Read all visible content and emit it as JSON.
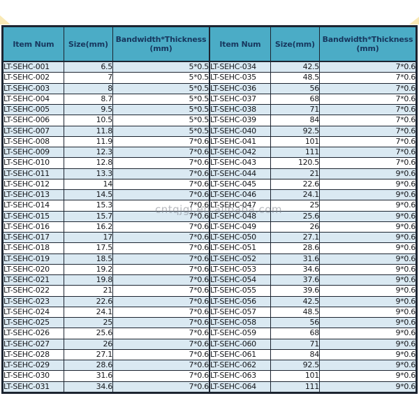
{
  "columns": [
    "Item Num",
    "Size(mm)",
    "Bandwidth*Thickness\n(mm)"
  ],
  "tables": {
    "left": {
      "rows": [
        [
          "LT-SEHC-001",
          "6.5",
          "5*0.5"
        ],
        [
          "LT-SEHC-002",
          "7",
          "5*0.5"
        ],
        [
          "LT-SEHC-003",
          "8",
          "5*0.5"
        ],
        [
          "LT-SEHC-004",
          "8.7",
          "5*0.5"
        ],
        [
          "LT-SEHC-005",
          "9.5",
          "5*0.5"
        ],
        [
          "LT-SEHC-006",
          "10.5",
          "5*0.5"
        ],
        [
          "LT-SEHC-007",
          "11.8",
          "5*0.5"
        ],
        [
          "LT-SEHC-008",
          "11.9",
          "7*0.6"
        ],
        [
          "LT-SEHC-009",
          "12.3",
          "7*0.6"
        ],
        [
          "LT-SEHC-010",
          "12.8",
          "7*0.6"
        ],
        [
          "LT-SEHC-011",
          "13.3",
          "7*0.6"
        ],
        [
          "LT-SEHC-012",
          "14",
          "7*0.6"
        ],
        [
          "LT-SEHC-013",
          "14.5",
          "7*0.6"
        ],
        [
          "LT-SEHC-014",
          "15.3",
          "7*0.6"
        ],
        [
          "LT-SEHC-015",
          "15.7",
          "7*0.6"
        ],
        [
          "LT-SEHC-016",
          "16.2",
          "7*0.6"
        ],
        [
          "LT-SEHC-017",
          "17",
          "7*0.6"
        ],
        [
          "LT-SEHC-018",
          "17.5",
          "7*0.6"
        ],
        [
          "LT-SEHC-019",
          "18.5",
          "7*0.6"
        ],
        [
          "LT-SEHC-020",
          "19.2",
          "7*0.6"
        ],
        [
          "LT-SEHC-021",
          "19.8",
          "7*0.6"
        ],
        [
          "LT-SEHC-022",
          "21",
          "7*0.6"
        ],
        [
          "LT-SEHC-023",
          "22.6",
          "7*0.6"
        ],
        [
          "LT-SEHC-024",
          "24.1",
          "7*0.6"
        ],
        [
          "LT-SEHC-025",
          "25",
          "7*0.6"
        ],
        [
          "LT-SEHC-026",
          "25.6",
          "7*0.6"
        ],
        [
          "LT-SEHC-027",
          "26",
          "7*0.6"
        ],
        [
          "LT-SEHC-028",
          "27.1",
          "7*0.6"
        ],
        [
          "LT-SEHC-029",
          "28.6",
          "7*0.6"
        ],
        [
          "LT-SEHC-030",
          "31.6",
          "7*0.6"
        ],
        [
          "LT-SEHC-031",
          "34.6",
          "7*0.6"
        ]
      ]
    },
    "right": {
      "rows": [
        [
          "LT-SEHC-034",
          "42.5",
          "7*0.6"
        ],
        [
          "LT-SEHC-035",
          "48.5",
          "7*0.6"
        ],
        [
          "LT-SEHC-036",
          "56",
          "7*0.6"
        ],
        [
          "LT-SEHC-037",
          "68",
          "7*0.6"
        ],
        [
          "LT-SEHC-038",
          "71",
          "7*0.6"
        ],
        [
          "LT-SEHC-039",
          "84",
          "7*0.6"
        ],
        [
          "LT-SEHC-040",
          "92.5",
          "7*0.6"
        ],
        [
          "LT-SEHC-041",
          "101",
          "7*0.6"
        ],
        [
          "LT-SEHC-042",
          "111",
          "7*0.6"
        ],
        [
          "LT-SEHC-043",
          "120.5",
          "7*0.6"
        ],
        [
          "LT-SEHC-044",
          "21",
          "9*0.6"
        ],
        [
          "LT-SEHC-045",
          "22.6",
          "9*0.6"
        ],
        [
          "LT-SEHC-046",
          "24.1",
          "9*0.6"
        ],
        [
          "LT-SEHC-047",
          "25",
          "9*0.6"
        ],
        [
          "LT-SEHC-048",
          "25.6",
          "9*0.6"
        ],
        [
          "LT-SEHC-049",
          "26",
          "9*0.6"
        ],
        [
          "LT-SEHC-050",
          "27.1",
          "9*0.6"
        ],
        [
          "LT-SEHC-051",
          "28.6",
          "9*0.6"
        ],
        [
          "LT-SEHC-052",
          "31.6",
          "9*0.6"
        ],
        [
          "LT-SEHC-053",
          "34.6",
          "9*0.6"
        ],
        [
          "LT-SEHC-054",
          "37.6",
          "9*0.6"
        ],
        [
          "LT-SEHC-055",
          "39.6",
          "9*0.6"
        ],
        [
          "LT-SEHC-056",
          "42.5",
          "9*0.6"
        ],
        [
          "LT-SEHC-057",
          "48.5",
          "9*0.6"
        ],
        [
          "LT-SEHC-058",
          "56",
          "9*0.6"
        ],
        [
          "LT-SEHC-059",
          "68",
          "9*0.6"
        ],
        [
          "LT-SEHC-060",
          "71",
          "9*0.6"
        ],
        [
          "LT-SEHC-061",
          "84",
          "9*0.6"
        ],
        [
          "LT-SEHC-062",
          "92.5",
          "9*0.6"
        ],
        [
          "LT-SEHC-063",
          "101",
          "9*0.6"
        ],
        [
          "LT-SEHC-064",
          "111",
          "9*0.6"
        ]
      ]
    }
  },
  "watermark": {
    "text": "cntqjgj.en.alibaba.com"
  },
  "colors": {
    "header_bg": "#4BACC6",
    "header_text": "#17375E",
    "row_alt": "#DAE9F2",
    "row_default": "#FFFFFF",
    "border": "#1C2430",
    "corner_mark": "#F2CF5B"
  }
}
